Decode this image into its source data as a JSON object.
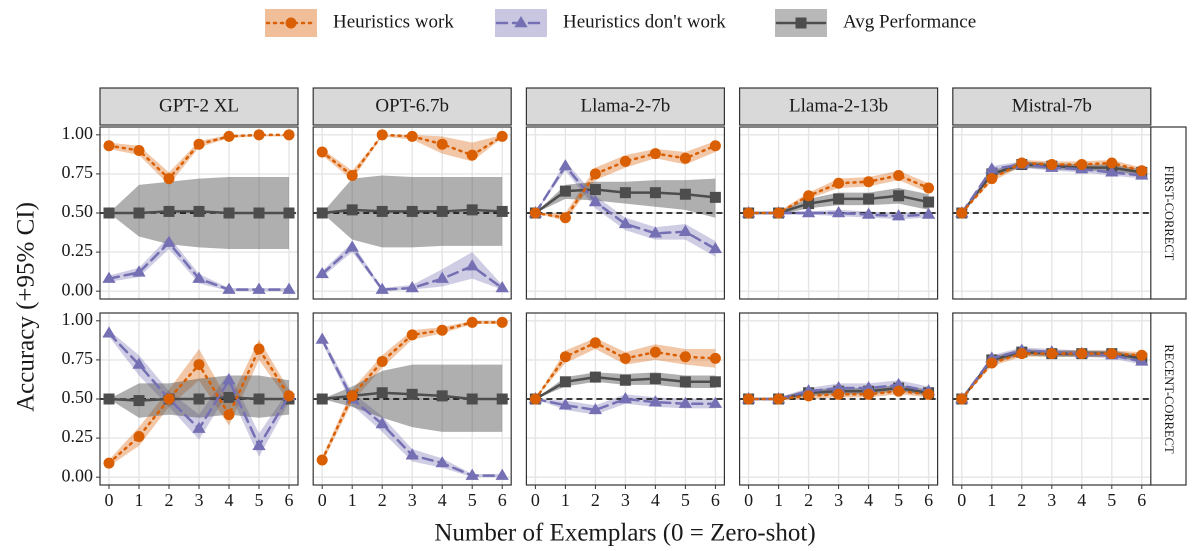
{
  "chart_data": {
    "type": "line",
    "xlabel": "Number of Exemplars (0 = Zero-shot)",
    "ylabel": "Accuracy (+95% CI)",
    "series": [
      {
        "name": "Heuristics work",
        "color": "#d95f02",
        "marker": "circle",
        "line": "dotted"
      },
      {
        "name": "Heuristics don't work",
        "color": "#7570b3",
        "marker": "triangle",
        "line": "dashed"
      },
      {
        "name": "Avg Performance",
        "color": "#4d4d4d",
        "marker": "square",
        "line": "solid"
      }
    ],
    "columns": [
      "GPT-2 XL",
      "OPT-6.7b",
      "Llama-2-7b",
      "Llama-2-13b",
      "Mistral-7b"
    ],
    "rows": [
      {
        "label": "FIRST-CORRECT",
        "color": "#4a8fd1"
      },
      {
        "label": "RECENT-CORRECT",
        "color": "#e8a822"
      }
    ],
    "x": [
      0,
      1,
      2,
      3,
      4,
      5,
      6
    ],
    "xlim": [
      -0.3,
      6.3
    ],
    "xticks": [
      0,
      1,
      2,
      3,
      4,
      5,
      6
    ],
    "ylim": [
      -0.05,
      1.05
    ],
    "yticks": [
      {
        "value": 0,
        "label": "0.00"
      },
      {
        "value": 0.25,
        "label": "0.25"
      },
      {
        "value": 0.5,
        "label": "0.50"
      },
      {
        "value": 0.75,
        "label": "0.75"
      },
      {
        "value": 1,
        "label": "1.00"
      }
    ],
    "hline": 0.5,
    "grid": true,
    "panels": [
      [
        [
          {
            "values": [
              0.93,
              0.9,
              0.72,
              0.94,
              0.99,
              1.0,
              1.0
            ],
            "lower": [
              0.91,
              0.87,
              0.68,
              0.92,
              0.98,
              0.99,
              0.99
            ],
            "upper": [
              0.95,
              0.93,
              0.76,
              0.96,
              1.0,
              1.0,
              1.0
            ]
          },
          {
            "values": [
              0.08,
              0.12,
              0.31,
              0.08,
              0.01,
              0.01,
              0.01
            ],
            "lower": [
              0.06,
              0.09,
              0.27,
              0.05,
              0,
              0,
              0
            ],
            "upper": [
              0.1,
              0.15,
              0.35,
              0.11,
              0.02,
              0.02,
              0.02
            ]
          },
          {
            "values": [
              0.5,
              0.5,
              0.51,
              0.51,
              0.5,
              0.5,
              0.5
            ],
            "lower": [
              0.5,
              0.35,
              0.3,
              0.28,
              0.27,
              0.27,
              0.27
            ],
            "upper": [
              0.5,
              0.68,
              0.7,
              0.72,
              0.73,
              0.73,
              0.73
            ]
          }
        ],
        [
          {
            "values": [
              0.89,
              0.74,
              1.0,
              0.99,
              0.94,
              0.87,
              0.99
            ],
            "lower": [
              0.87,
              0.71,
              0.99,
              0.97,
              0.88,
              0.83,
              0.98
            ],
            "upper": [
              0.91,
              0.77,
              1.0,
              1.0,
              0.99,
              0.95,
              1.0
            ]
          },
          {
            "values": [
              0.11,
              0.28,
              0.01,
              0.02,
              0.08,
              0.16,
              0.02
            ],
            "lower": [
              0.09,
              0.25,
              0,
              0.01,
              0.03,
              0.08,
              0.01
            ],
            "upper": [
              0.13,
              0.31,
              0.02,
              0.04,
              0.14,
              0.25,
              0.04
            ]
          },
          {
            "values": [
              0.5,
              0.52,
              0.51,
              0.51,
              0.51,
              0.52,
              0.51
            ],
            "lower": [
              0.5,
              0.33,
              0.28,
              0.28,
              0.29,
              0.29,
              0.29
            ],
            "upper": [
              0.5,
              0.72,
              0.74,
              0.73,
              0.73,
              0.73,
              0.73
            ]
          }
        ],
        [
          {
            "values": [
              0.5,
              0.47,
              0.75,
              0.83,
              0.88,
              0.85,
              0.93
            ],
            "lower": [
              0.5,
              0.45,
              0.71,
              0.79,
              0.85,
              0.81,
              0.89
            ],
            "upper": [
              0.5,
              0.5,
              0.79,
              0.87,
              0.91,
              0.89,
              0.96
            ]
          },
          {
            "values": [
              0.5,
              0.8,
              0.57,
              0.43,
              0.37,
              0.38,
              0.27
            ],
            "lower": [
              0.5,
              0.77,
              0.53,
              0.39,
              0.33,
              0.33,
              0.22
            ],
            "upper": [
              0.5,
              0.83,
              0.61,
              0.47,
              0.41,
              0.43,
              0.32
            ]
          },
          {
            "values": [
              0.5,
              0.64,
              0.65,
              0.63,
              0.63,
              0.62,
              0.6
            ],
            "lower": [
              0.5,
              0.59,
              0.58,
              0.56,
              0.54,
              0.52,
              0.47
            ],
            "upper": [
              0.5,
              0.68,
              0.7,
              0.7,
              0.71,
              0.71,
              0.72
            ]
          }
        ],
        [
          {
            "values": [
              0.5,
              0.5,
              0.61,
              0.69,
              0.7,
              0.74,
              0.66
            ],
            "lower": [
              0.5,
              0.49,
              0.59,
              0.66,
              0.67,
              0.71,
              0.63
            ],
            "upper": [
              0.5,
              0.51,
              0.63,
              0.72,
              0.73,
              0.77,
              0.69
            ]
          },
          {
            "values": [
              0.5,
              0.5,
              0.5,
              0.5,
              0.49,
              0.48,
              0.49
            ],
            "lower": [
              0.5,
              0.49,
              0.49,
              0.48,
              0.47,
              0.46,
              0.47
            ],
            "upper": [
              0.5,
              0.51,
              0.51,
              0.52,
              0.51,
              0.5,
              0.51
            ]
          },
          {
            "values": [
              0.5,
              0.5,
              0.56,
              0.59,
              0.59,
              0.61,
              0.57
            ],
            "lower": [
              0.5,
              0.49,
              0.53,
              0.55,
              0.55,
              0.56,
              0.52
            ],
            "upper": [
              0.5,
              0.51,
              0.59,
              0.63,
              0.63,
              0.66,
              0.62
            ]
          }
        ],
        [
          {
            "values": [
              0.5,
              0.72,
              0.82,
              0.81,
              0.81,
              0.82,
              0.77
            ],
            "lower": [
              0.5,
              0.7,
              0.8,
              0.79,
              0.79,
              0.8,
              0.75
            ],
            "upper": [
              0.5,
              0.74,
              0.84,
              0.83,
              0.83,
              0.84,
              0.79
            ]
          },
          {
            "values": [
              0.5,
              0.78,
              0.81,
              0.79,
              0.78,
              0.76,
              0.74
            ],
            "lower": [
              0.5,
              0.76,
              0.79,
              0.77,
              0.76,
              0.74,
              0.72
            ],
            "upper": [
              0.5,
              0.8,
              0.83,
              0.81,
              0.8,
              0.78,
              0.76
            ]
          },
          {
            "values": [
              0.5,
              0.75,
              0.81,
              0.8,
              0.79,
              0.79,
              0.76
            ],
            "lower": [
              0.5,
              0.73,
              0.79,
              0.78,
              0.77,
              0.77,
              0.74
            ],
            "upper": [
              0.5,
              0.77,
              0.83,
              0.82,
              0.81,
              0.81,
              0.78
            ]
          }
        ]
      ],
      [
        [
          {
            "values": [
              0.09,
              0.26,
              0.5,
              0.72,
              0.4,
              0.82,
              0.52
            ],
            "lower": [
              0.07,
              0.2,
              0.45,
              0.62,
              0.33,
              0.75,
              0.48
            ],
            "upper": [
              0.11,
              0.32,
              0.56,
              0.82,
              0.48,
              0.88,
              0.56
            ]
          },
          {
            "values": [
              0.92,
              0.72,
              0.5,
              0.31,
              0.62,
              0.2,
              0.52
            ],
            "lower": [
              0.9,
              0.65,
              0.45,
              0.24,
              0.55,
              0.13,
              0.48
            ],
            "upper": [
              0.94,
              0.78,
              0.55,
              0.4,
              0.67,
              0.28,
              0.56
            ]
          },
          {
            "values": [
              0.5,
              0.49,
              0.5,
              0.5,
              0.51,
              0.5,
              0.5
            ],
            "lower": [
              0.5,
              0.38,
              0.4,
              0.38,
              0.4,
              0.38,
              0.4
            ],
            "upper": [
              0.5,
              0.6,
              0.6,
              0.63,
              0.65,
              0.65,
              0.62
            ]
          }
        ],
        [
          {
            "values": [
              0.11,
              0.52,
              0.74,
              0.91,
              0.94,
              0.99,
              0.99
            ],
            "lower": [
              0.09,
              0.48,
              0.7,
              0.88,
              0.92,
              0.98,
              0.98
            ],
            "upper": [
              0.13,
              0.56,
              0.78,
              0.94,
              0.96,
              1.0,
              1.0
            ]
          },
          {
            "values": [
              0.88,
              0.5,
              0.34,
              0.14,
              0.09,
              0.01,
              0.01
            ],
            "lower": [
              0.86,
              0.46,
              0.29,
              0.1,
              0.06,
              0,
              0
            ],
            "upper": [
              0.9,
              0.54,
              0.39,
              0.18,
              0.12,
              0.02,
              0.02
            ]
          },
          {
            "values": [
              0.5,
              0.52,
              0.54,
              0.53,
              0.52,
              0.5,
              0.5
            ],
            "lower": [
              0.5,
              0.45,
              0.38,
              0.32,
              0.29,
              0.29,
              0.29
            ],
            "upper": [
              0.5,
              0.58,
              0.68,
              0.72,
              0.72,
              0.72,
              0.72
            ]
          }
        ],
        [
          {
            "values": [
              0.5,
              0.77,
              0.86,
              0.76,
              0.8,
              0.77,
              0.76
            ],
            "lower": [
              0.5,
              0.73,
              0.82,
              0.72,
              0.75,
              0.72,
              0.7
            ],
            "upper": [
              0.5,
              0.81,
              0.89,
              0.8,
              0.85,
              0.82,
              0.82
            ]
          },
          {
            "values": [
              0.5,
              0.46,
              0.43,
              0.5,
              0.48,
              0.47,
              0.47
            ],
            "lower": [
              0.5,
              0.43,
              0.4,
              0.47,
              0.45,
              0.44,
              0.44
            ],
            "upper": [
              0.5,
              0.49,
              0.46,
              0.53,
              0.51,
              0.5,
              0.5
            ]
          },
          {
            "values": [
              0.5,
              0.61,
              0.64,
              0.62,
              0.63,
              0.61,
              0.61
            ],
            "lower": [
              0.5,
              0.58,
              0.61,
              0.59,
              0.59,
              0.57,
              0.57
            ],
            "upper": [
              0.5,
              0.64,
              0.67,
              0.66,
              0.67,
              0.65,
              0.65
            ]
          }
        ],
        [
          {
            "values": [
              0.5,
              0.5,
              0.52,
              0.53,
              0.53,
              0.55,
              0.53
            ],
            "lower": [
              0.5,
              0.49,
              0.5,
              0.51,
              0.51,
              0.53,
              0.51
            ],
            "upper": [
              0.5,
              0.51,
              0.54,
              0.55,
              0.55,
              0.57,
              0.55
            ]
          },
          {
            "values": [
              0.5,
              0.5,
              0.55,
              0.57,
              0.57,
              0.59,
              0.55
            ],
            "lower": [
              0.5,
              0.49,
              0.53,
              0.54,
              0.54,
              0.56,
              0.52
            ],
            "upper": [
              0.5,
              0.51,
              0.57,
              0.6,
              0.6,
              0.62,
              0.58
            ]
          },
          {
            "values": [
              0.5,
              0.5,
              0.54,
              0.55,
              0.55,
              0.57,
              0.54
            ],
            "lower": [
              0.5,
              0.49,
              0.52,
              0.53,
              0.53,
              0.55,
              0.52
            ],
            "upper": [
              0.5,
              0.51,
              0.56,
              0.57,
              0.57,
              0.59,
              0.56
            ]
          }
        ],
        [
          {
            "values": [
              0.5,
              0.73,
              0.79,
              0.79,
              0.79,
              0.79,
              0.78
            ],
            "lower": [
              0.5,
              0.71,
              0.77,
              0.77,
              0.77,
              0.77,
              0.76
            ],
            "upper": [
              0.5,
              0.75,
              0.81,
              0.81,
              0.81,
              0.81,
              0.8
            ]
          },
          {
            "values": [
              0.5,
              0.76,
              0.81,
              0.8,
              0.79,
              0.78,
              0.74
            ],
            "lower": [
              0.5,
              0.74,
              0.79,
              0.78,
              0.77,
              0.76,
              0.72
            ],
            "upper": [
              0.5,
              0.78,
              0.83,
              0.82,
              0.81,
              0.8,
              0.76
            ]
          },
          {
            "values": [
              0.5,
              0.75,
              0.8,
              0.79,
              0.79,
              0.79,
              0.76
            ],
            "lower": [
              0.5,
              0.73,
              0.78,
              0.77,
              0.77,
              0.77,
              0.74
            ],
            "upper": [
              0.5,
              0.77,
              0.82,
              0.81,
              0.81,
              0.81,
              0.78
            ]
          }
        ]
      ]
    ]
  }
}
